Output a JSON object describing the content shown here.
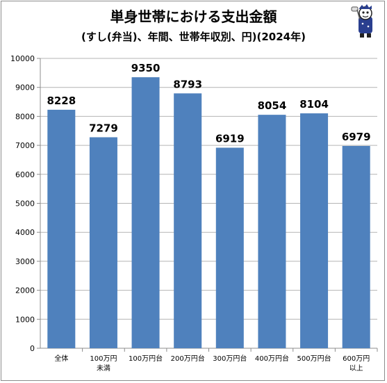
{
  "colors": {
    "bar": "#4f81bd",
    "axis": "#8c8c8c",
    "grid": "#b4b4b4"
  },
  "icons": {
    "mascot": "cartoon-mascot-icon"
  },
  "chart_data": {
    "type": "bar",
    "title": "単身世帯における支出金額",
    "subtitle": "(すし(弁当)、年間、世帯年収別、円)(2024年)",
    "categories": [
      [
        "全体"
      ],
      [
        "100万円",
        "未満"
      ],
      [
        "100万円台"
      ],
      [
        "200万円台"
      ],
      [
        "300万円台"
      ],
      [
        "400万円台"
      ],
      [
        "500万円台"
      ],
      [
        "600万円",
        "以上"
      ]
    ],
    "values": [
      8228,
      7279,
      9350,
      8793,
      6919,
      8054,
      8104,
      6979
    ],
    "data_labels": [
      "8228",
      "7279",
      "9350",
      "8793",
      "6919",
      "8054",
      "8104",
      "6979"
    ],
    "ylim": [
      0,
      10000
    ],
    "yticks": [
      "0",
      "1000",
      "2000",
      "3000",
      "4000",
      "5000",
      "6000",
      "7000",
      "8000",
      "9000",
      "10000"
    ],
    "grid": true,
    "legend": "none",
    "xlabel": "",
    "ylabel": ""
  }
}
